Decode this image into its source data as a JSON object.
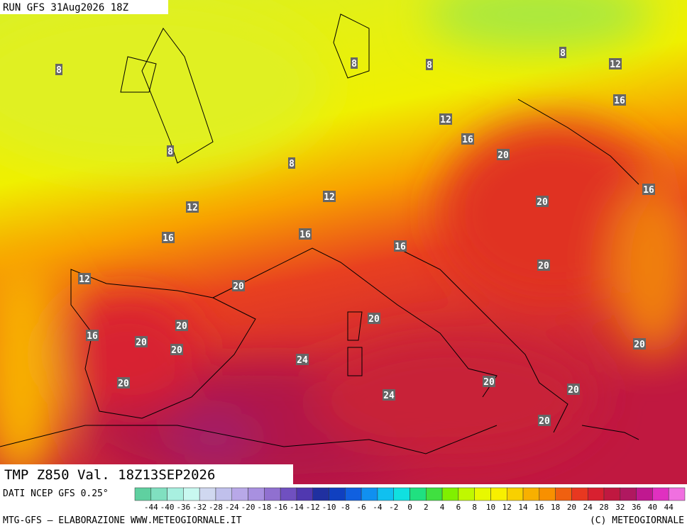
{
  "header": {
    "run": "RUN GFS 31Aug2026 18Z",
    "field": "TMP Z850 Val. 18Z13SEP2026"
  },
  "contour_labels": [
    8,
    8,
    8,
    8,
    12,
    16,
    12,
    16,
    20,
    8,
    8,
    12,
    16,
    12,
    20,
    16,
    16,
    16,
    20,
    12,
    20,
    20,
    20,
    16,
    20,
    20,
    20,
    24,
    20,
    20,
    24,
    20,
    20
  ],
  "legend": {
    "source": "DATI NCEP GFS 0.25°",
    "labels": [
      -44,
      -40,
      -36,
      -32,
      -28,
      -24,
      -20,
      -18,
      -16,
      -14,
      -12,
      -10,
      -8,
      -6,
      -4,
      -2,
      0,
      2,
      4,
      6,
      8,
      10,
      12,
      14,
      16,
      18,
      20,
      24,
      28,
      32,
      36,
      40,
      44
    ],
    "colors": [
      "#5fd0a0",
      "#80e0c0",
      "#a8f0e0",
      "#c8f8f0",
      "#d0d8f0",
      "#c0c0ec",
      "#b8a8e8",
      "#a890e0",
      "#9070d0",
      "#7050c0",
      "#5038b0",
      "#2030a0",
      "#1040c0",
      "#1060e0",
      "#1090f0",
      "#10c0f0",
      "#10e0e0",
      "#20e080",
      "#40e040",
      "#80f000",
      "#c0f800",
      "#e8f800",
      "#f8f000",
      "#f8d000",
      "#f8b000",
      "#f89000",
      "#f06010",
      "#e83820",
      "#d82030",
      "#c01840",
      "#b01860",
      "#c01890",
      "#e030c0",
      "#f070e0"
    ]
  },
  "footer": {
    "left": "MTG-GFS — ELABORAZIONE WWW.METEOGIORNALE.IT",
    "right": "(C) METEOGIORNALE"
  }
}
